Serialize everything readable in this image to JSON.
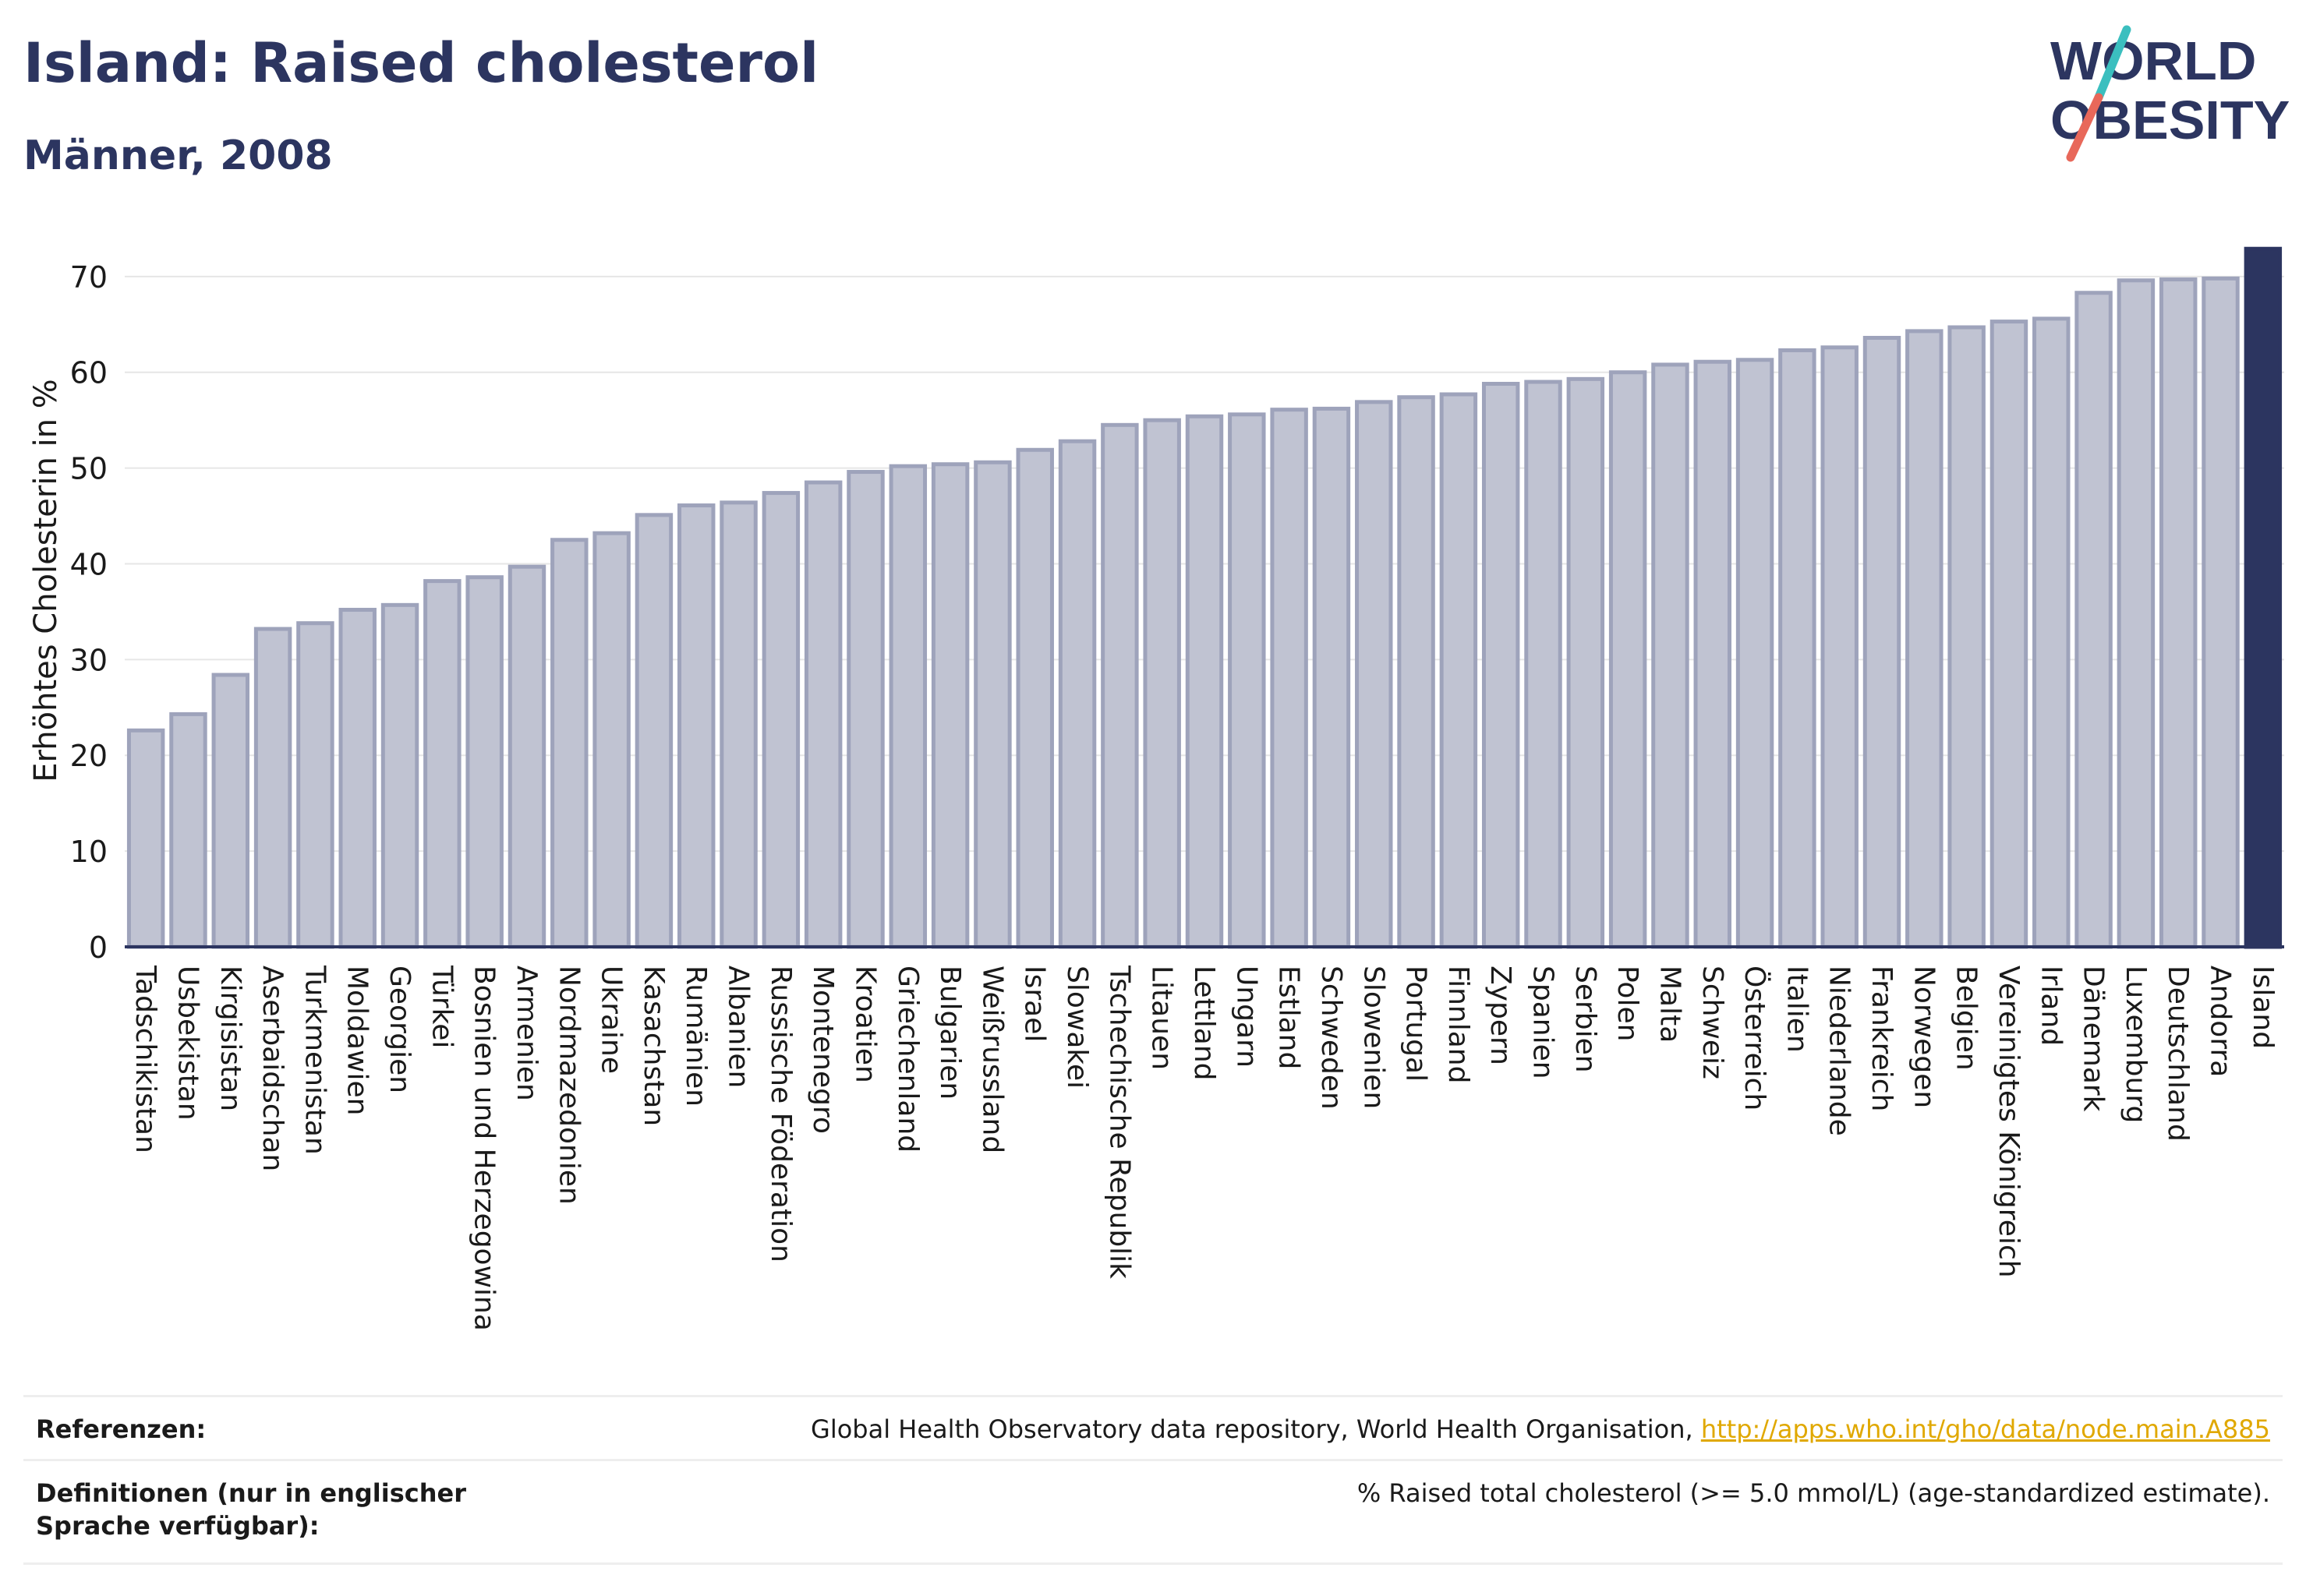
{
  "header": {
    "title": "Island: Raised cholesterol",
    "subtitle": "Männer, 2008",
    "logo_line1": "WORLD",
    "logo_line2": "OBESITY"
  },
  "colors": {
    "bar_fill": "#c0c3d2",
    "bar_stroke": "#9ea3bb",
    "highlight": "#2c3560",
    "axis": "#2c3560",
    "grid": "#e6e6e6",
    "logo_slash_teal": "#3bbfbf",
    "logo_slash_red": "#e8685a",
    "link": "#e0a800"
  },
  "chart_data": {
    "type": "bar",
    "ylabel": "Erhöhtes Cholesterin in %",
    "xlabel": "",
    "ylim": [
      0,
      73
    ],
    "yticks": [
      0,
      10,
      20,
      30,
      40,
      50,
      60,
      70
    ],
    "grid": true,
    "highlight_category": "Island",
    "categories": [
      "Tadschikistan",
      "Usbekistan",
      "Kirgisistan",
      "Aserbaidschan",
      "Turkmenistan",
      "Moldawien",
      "Georgien",
      "Türkei",
      "Bosnien und Herzegowina",
      "Armenien",
      "Nordmazedonien",
      "Ukraine",
      "Kasachstan",
      "Rumänien",
      "Albanien",
      "Russische Föderation",
      "Montenegro",
      "Kroatien",
      "Griechenland",
      "Bulgarien",
      "Weißrussland",
      "Israel",
      "Slowakei",
      "Tschechische Republik",
      "Litauen",
      "Lettland",
      "Ungarn",
      "Estland",
      "Schweden",
      "Slowenien",
      "Portugal",
      "Finnland",
      "Zypern",
      "Spanien",
      "Serbien",
      "Polen",
      "Malta",
      "Schweiz",
      "Österreich",
      "Italien",
      "Niederlande",
      "Frankreich",
      "Norwegen",
      "Belgien",
      "Vereinigtes Königreich",
      "Irland",
      "Dänemark",
      "Luxemburg",
      "Deutschland",
      "Andorra",
      "Island"
    ],
    "values": [
      22.6,
      24.3,
      28.4,
      33.2,
      33.8,
      35.2,
      35.7,
      38.2,
      38.6,
      39.7,
      42.5,
      43.2,
      45.1,
      46.1,
      46.4,
      47.4,
      48.5,
      49.6,
      50.2,
      50.4,
      50.6,
      51.9,
      52.8,
      54.5,
      55.0,
      55.4,
      55.6,
      56.1,
      56.2,
      56.9,
      57.4,
      57.7,
      58.8,
      59.0,
      59.3,
      60.0,
      60.8,
      61.1,
      61.3,
      62.3,
      62.6,
      63.6,
      64.3,
      64.7,
      65.3,
      65.6,
      68.3,
      69.6,
      69.7,
      69.8,
      72.9
    ]
  },
  "references": {
    "ref_label": "Referenzen:",
    "ref_text": "Global Health Observatory data repository, World Health Organisation, ",
    "ref_link": "http://apps.who.int/gho/data/node.main.A885",
    "def_label": "Definitionen (nur in englischer Sprache verfügbar):",
    "def_text": "% Raised total cholesterol (>= 5.0 mmol/L) (age-standardized estimate)."
  }
}
